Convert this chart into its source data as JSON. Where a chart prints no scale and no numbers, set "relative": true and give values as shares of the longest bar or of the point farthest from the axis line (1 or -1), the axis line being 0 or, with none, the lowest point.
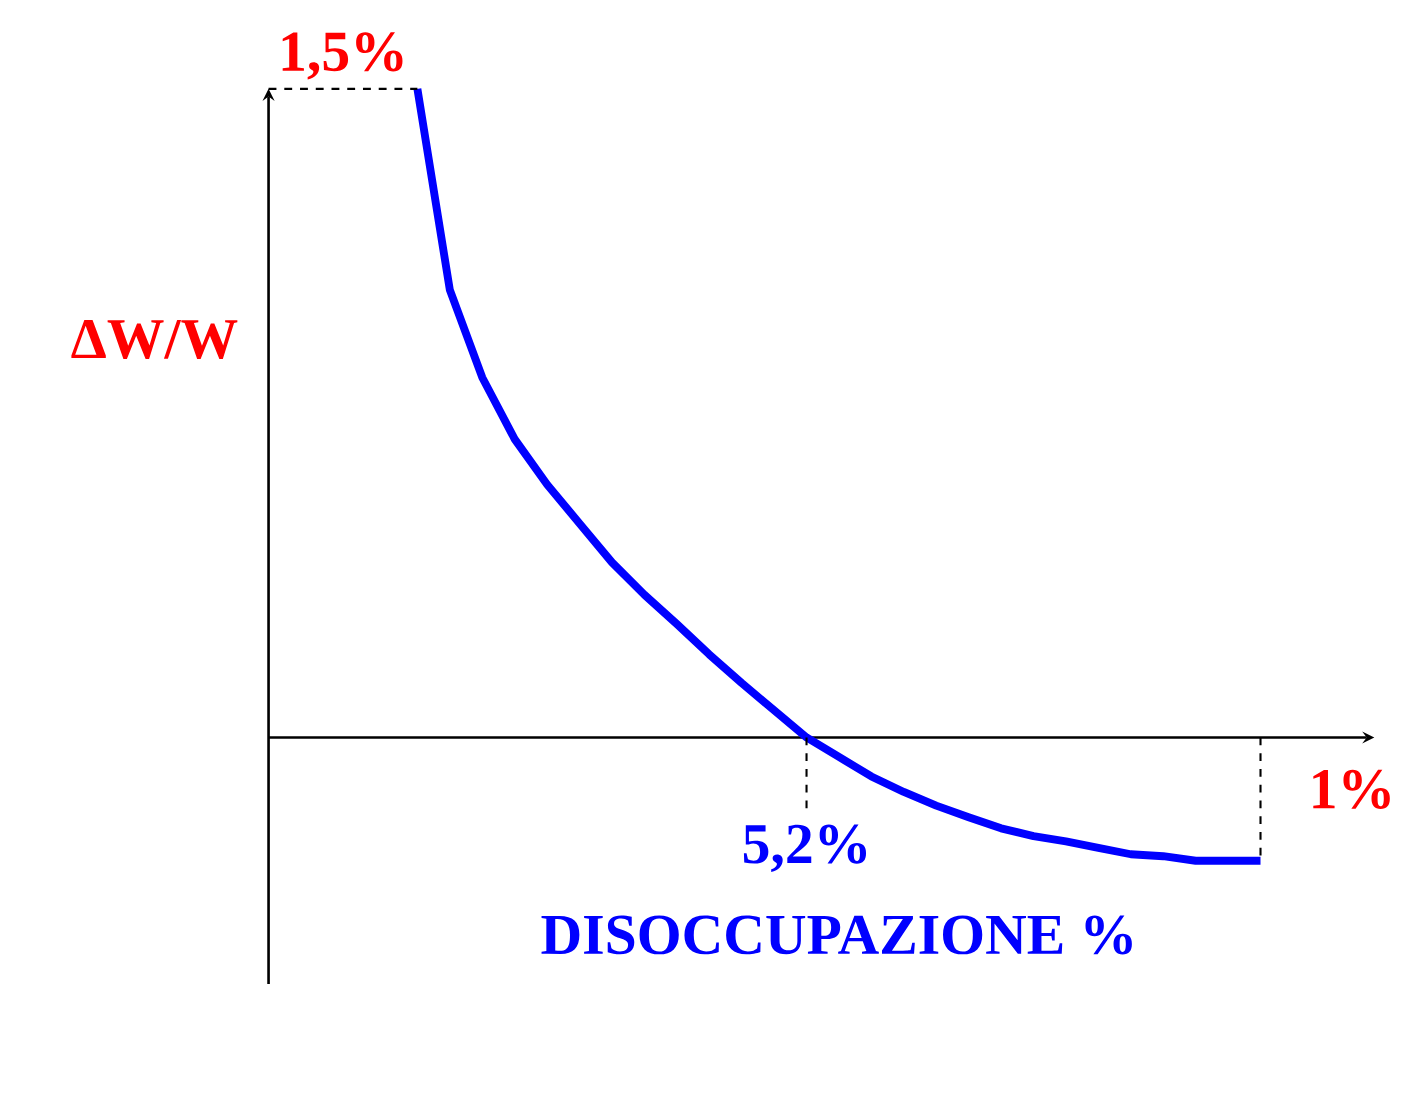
{
  "chart_data": {
    "type": "line",
    "relative": true,
    "xlabel": "DISOCCUPAZIONE %",
    "ylabel": "ΔW/W",
    "categories": [
      null,
      null,
      null,
      null,
      null,
      null,
      null,
      null,
      null,
      null,
      null,
      null,
      null,
      null,
      null,
      null,
      null,
      null,
      null,
      null,
      null,
      null,
      null,
      null,
      null,
      null,
      null
    ],
    "series": [
      {
        "color": "#0000ff",
        "values": [
          1.0,
          0.69,
          0.555,
          0.46,
          0.39,
          0.33,
          0.27,
          0.22,
          0.175,
          0.128,
          0.084,
          0.042,
          0,
          -0.03,
          -0.06,
          -0.084,
          -0.105,
          -0.123,
          -0.14,
          -0.152,
          -0.16,
          -0.17,
          -0.18,
          -0.183,
          -0.19,
          -0.19,
          -0.19
        ]
      }
    ],
    "annotations": [
      "1,5%",
      "5,2%",
      "1%"
    ],
    "marker": "none",
    "line_style": "solid"
  }
}
